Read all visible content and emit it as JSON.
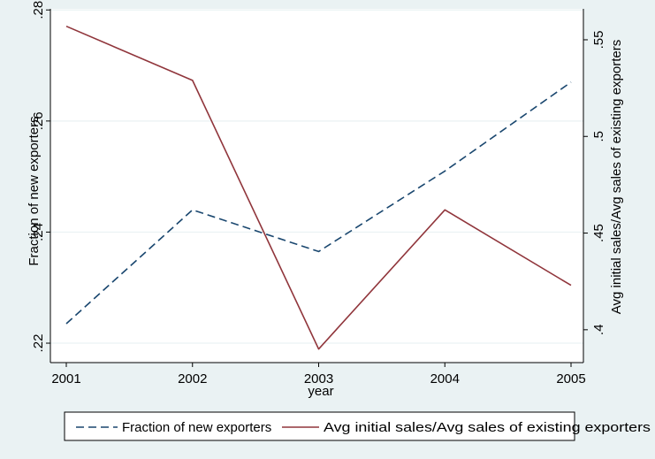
{
  "chart_data": {
    "type": "line",
    "title": "",
    "xlabel": "year",
    "ylabel_left": "Fraction of new exporters",
    "ylabel_right": "Avg initial sales/Avg sales of existing exporters",
    "x": [
      2001,
      2002,
      2003,
      2004,
      2005
    ],
    "x_tick_labels": [
      "2001",
      "2002",
      "2003",
      "2004",
      "2005"
    ],
    "xlim": [
      2001,
      2005
    ],
    "ylim_left": [
      0.2165,
      0.2802
    ],
    "yticks_left": [
      0.22,
      0.24,
      0.26,
      0.28
    ],
    "ytick_labels_left": [
      ".22",
      ".24",
      ".26",
      ".28"
    ],
    "ylim_right": [
      0.383,
      0.566
    ],
    "yticks_right": [
      0.4,
      0.45,
      0.5,
      0.55
    ],
    "ytick_labels_right": [
      ".4",
      ".45",
      ".5",
      ".55"
    ],
    "series": [
      {
        "name": "Fraction of new exporters",
        "axis": "left",
        "values": [
          0.2235,
          0.244,
          0.2365,
          0.251,
          0.267
        ],
        "color": "#1a476f",
        "dash": "dashed"
      },
      {
        "name": "Avg initial sales/Avg sales of existing exporters",
        "axis": "right",
        "values": [
          0.557,
          0.529,
          0.39,
          0.462,
          0.423
        ],
        "color": "#90353b",
        "dash": "solid"
      }
    ],
    "grid": "horizontal",
    "legend_position": "bottom"
  }
}
